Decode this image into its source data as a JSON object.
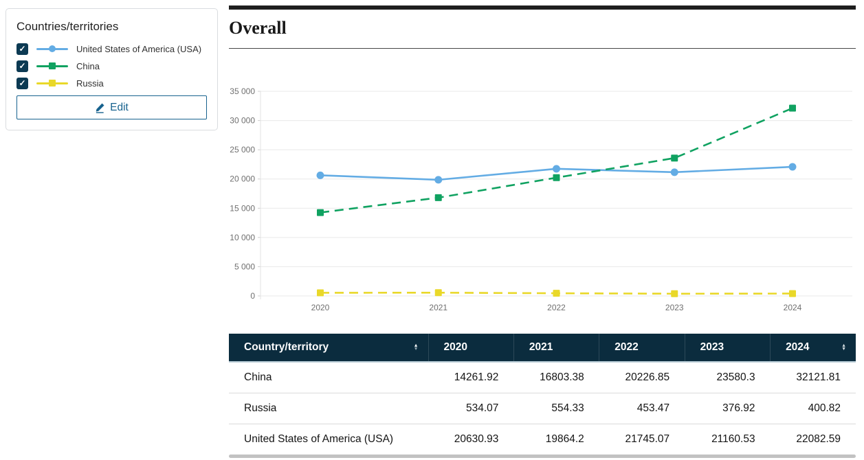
{
  "sidebar": {
    "title": "Countries/territories",
    "items": [
      {
        "label": "United States of America (USA)",
        "checked": true,
        "color": "#63ace4",
        "marker": "circle"
      },
      {
        "label": "China",
        "checked": true,
        "color": "#10a261",
        "marker": "square"
      },
      {
        "label": "Russia",
        "checked": true,
        "color": "#e9d829",
        "marker": "square"
      }
    ],
    "edit_label": "Edit"
  },
  "main": {
    "title": "Overall"
  },
  "chart_data": {
    "type": "line",
    "title": "Overall",
    "categories": [
      "2020",
      "2021",
      "2022",
      "2023",
      "2024"
    ],
    "series": [
      {
        "name": "United States of America (USA)",
        "color": "#63ace4",
        "marker": "circle",
        "dash": "solid",
        "values": [
          20630.93,
          19864.2,
          21745.07,
          21160.53,
          22082.59
        ]
      },
      {
        "name": "China",
        "color": "#10a261",
        "marker": "square",
        "dash": "dashed",
        "values": [
          14261.92,
          16803.38,
          20226.85,
          23580.3,
          32121.81
        ]
      },
      {
        "name": "Russia",
        "color": "#e9d829",
        "marker": "square",
        "dash": "dashed",
        "values": [
          534.07,
          554.33,
          453.47,
          376.92,
          400.82
        ]
      }
    ],
    "xlabel": "",
    "ylabel": "",
    "ylim": [
      0,
      35000
    ],
    "ytick_step": 5000,
    "ytick_labels": [
      "0",
      "5 000",
      "10 000",
      "15 000",
      "20 000",
      "25 000",
      "30 000",
      "35 000"
    ],
    "grid": true,
    "legend_position": "external-sidebar"
  },
  "table": {
    "columns": [
      "Country/territory",
      "2020",
      "2021",
      "2022",
      "2023",
      "2024"
    ],
    "rows": [
      {
        "country": "China",
        "values": [
          "14261.92",
          "16803.38",
          "20226.85",
          "23580.3",
          "32121.81"
        ]
      },
      {
        "country": "Russia",
        "values": [
          "534.07",
          "554.33",
          "453.47",
          "376.92",
          "400.82"
        ]
      },
      {
        "country": "United States of America (USA)",
        "values": [
          "20630.93",
          "19864.2",
          "21745.07",
          "21160.53",
          "22082.59"
        ]
      }
    ]
  },
  "icons": {
    "check": "✓",
    "sort_asc": "▲",
    "sort_desc": "▼",
    "edit": "pencil-icon"
  },
  "colors": {
    "accent_blue": "#17628e",
    "checkbox_navy": "#0c3a53",
    "table_header_navy": "#0b2c3e",
    "grid_line": "#e9e9e9",
    "axis_text": "#6f6f6f",
    "usa_line": "#63ace4",
    "china_line": "#10a261",
    "russia_line": "#e9d829"
  }
}
